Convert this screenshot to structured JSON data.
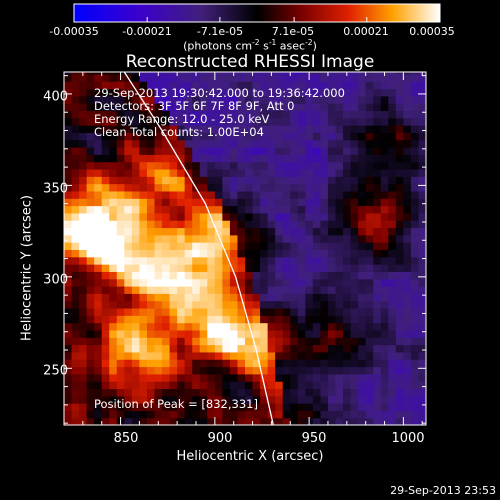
{
  "title": "Reconstructed RHESSI Image",
  "info_lines": [
    "29-Sep-2013 19:30:42.000 to 19:36:42.000",
    "Detectors: 3F 5F 6F 7F 8F 9F, Att 0",
    "Energy Range: 12.0 - 25.0 keV",
    "Clean     Total counts: 1.00E+04"
  ],
  "colorbar": {
    "tick_labels": [
      "-0.00035",
      "-0.00021",
      "-7.1e-05",
      "7.1e-05",
      "0.00021",
      "0.00035"
    ],
    "tick_values": [
      -0.00035,
      -0.00021,
      -7.1e-05,
      7.1e-05,
      0.00021,
      0.00035
    ],
    "range": [
      -0.00035,
      0.00035
    ],
    "unit_text": "(photons cm",
    "unit_exp1": "-2",
    "unit_mid": " s",
    "unit_exp2": "-1",
    "unit_mid2": " asec",
    "unit_exp3": "-2",
    "unit_end": ")"
  },
  "peak_text": "Position of Peak = [832,331]",
  "timestamp": "29-Sep-2013 23:53",
  "colors": {
    "background": "#000000",
    "limb_line": "#ffffff",
    "colormap_low": "#0000ff",
    "colormap_mid": "#000000",
    "colormap_high": "#ffffff"
  },
  "chart_data": {
    "type": "heatmap",
    "xlabel": "Heliocentric X (arcsec)",
    "ylabel": "Heliocentric Y (arcsec)",
    "xlim": [
      820,
      1012
    ],
    "ylim": [
      219,
      412
    ],
    "x_ticks": [
      850,
      900,
      950,
      1000
    ],
    "x_tick_labels": [
      "850",
      "900",
      "950",
      "1000"
    ],
    "y_ticks": [
      250,
      300,
      350,
      400
    ],
    "y_tick_labels": [
      "250",
      "300",
      "350",
      "400"
    ],
    "value_range": [
      -0.00035,
      0.00035
    ],
    "peak_position": [
      832,
      331
    ],
    "limb_points": [
      [
        852,
        412
      ],
      [
        872,
        380
      ],
      [
        895,
        340
      ],
      [
        911,
        300
      ],
      [
        922,
        260
      ],
      [
        931,
        219
      ]
    ],
    "bright_sources": [
      {
        "x": 832,
        "y": 331,
        "amp": 0.00034
      },
      {
        "x": 850,
        "y": 315,
        "amp": 0.00028
      },
      {
        "x": 878,
        "y": 302,
        "amp": 0.00026
      },
      {
        "x": 905,
        "y": 322,
        "amp": 0.00027
      },
      {
        "x": 900,
        "y": 276,
        "amp": 0.00025
      },
      {
        "x": 925,
        "y": 266,
        "amp": 0.00022
      },
      {
        "x": 858,
        "y": 262,
        "amp": 0.00026
      },
      {
        "x": 870,
        "y": 350,
        "amp": 0.00018
      },
      {
        "x": 985,
        "y": 330,
        "amp": 0.00022
      },
      {
        "x": 990,
        "y": 375,
        "amp": 0.00019
      },
      {
        "x": 965,
        "y": 272,
        "amp": 0.00016
      },
      {
        "x": 948,
        "y": 232,
        "amp": 0.00013
      }
    ]
  }
}
